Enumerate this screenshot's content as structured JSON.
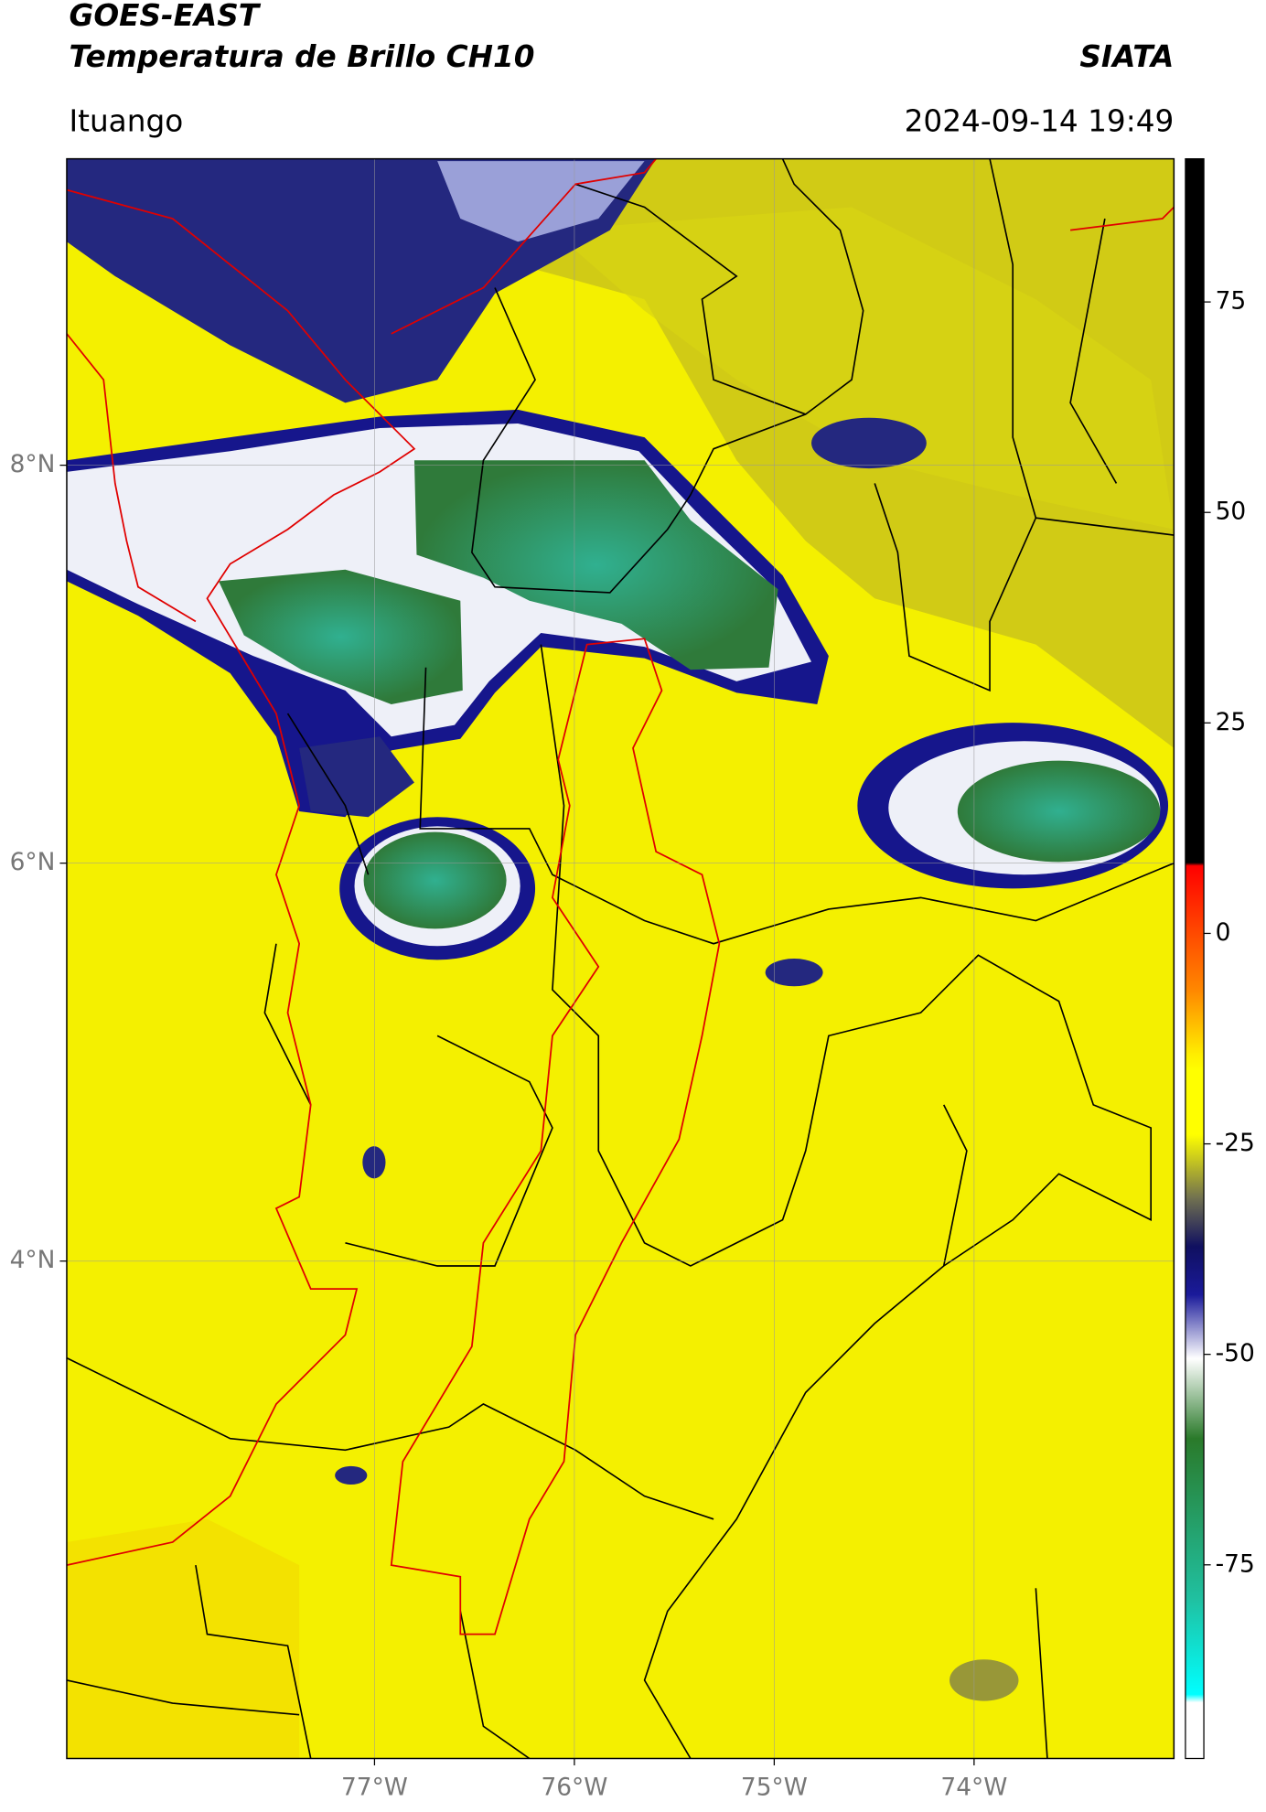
{
  "chart_data": {
    "type": "map",
    "title": "GOES-EAST",
    "subtitle": "Temperatura de Brillo CH10",
    "source": "SIATA",
    "location": "Ituango",
    "timestamp": "2024-09-14 19:49",
    "xlim": [
      -78.54,
      -73.0
    ],
    "ylim": [
      1.5,
      9.54
    ],
    "xticks": [
      {
        "value": -77,
        "label": "77°W"
      },
      {
        "value": -76,
        "label": "76°W"
      },
      {
        "value": -75,
        "label": "75°W"
      },
      {
        "value": -74,
        "label": "74°W"
      }
    ],
    "yticks": [
      {
        "value": 4,
        "label": "4°N"
      },
      {
        "value": 6,
        "label": "6°N"
      },
      {
        "value": 8,
        "label": "8°N"
      }
    ],
    "grid": true,
    "colorbar": {
      "lim": [
        -98,
        92
      ],
      "ticks": [
        -75,
        -50,
        -25,
        0,
        25,
        50,
        75
      ]
    }
  }
}
